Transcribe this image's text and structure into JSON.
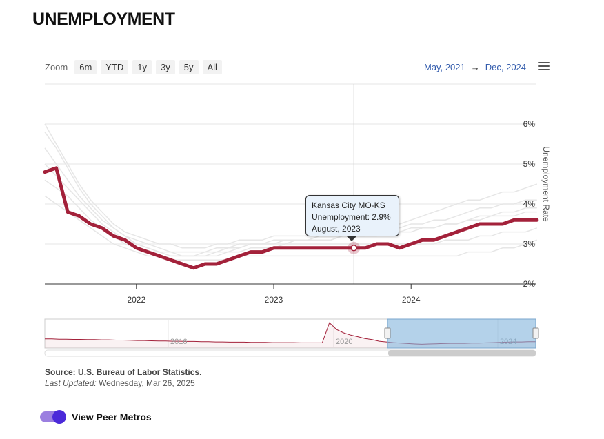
{
  "page": {
    "title": "UNEMPLOYMENT"
  },
  "zoom": {
    "label": "Zoom",
    "buttons": [
      "6m",
      "YTD",
      "1y",
      "3y",
      "5y",
      "All"
    ]
  },
  "range": {
    "from": "May, 2021",
    "arrow": "→",
    "to": "Dec, 2024"
  },
  "tooltip": {
    "line1": "Kansas City MO-KS",
    "line2": "Unemployment: 2.9%",
    "line3": "August, 2023"
  },
  "footer": {
    "source_label": "Source:",
    "source_text": "U.S. Bureau of Labor Statistics.",
    "updated_label": "Last Updated:",
    "updated_text": "Wednesday, Mar 26, 2025"
  },
  "toggle": {
    "label": "View Peer Metros",
    "on": true
  },
  "colors": {
    "main_series": "#a3213a",
    "peer_series": "#e6e6e6",
    "navigator_mask": "#a9cde9",
    "accent": "#4b2ad9"
  },
  "chart_data": {
    "type": "line",
    "ylabel": "Unemployment Rate",
    "ylim": [
      2,
      6.5
    ],
    "yticks": [
      2,
      3,
      4,
      5,
      6
    ],
    "ytick_labels": [
      "2%",
      "3%",
      "4%",
      "5%",
      "6%"
    ],
    "xticks": [
      "2022",
      "2023",
      "2024"
    ],
    "grid": true,
    "series": [
      {
        "name": "Kansas City MO-KS",
        "x": [
          "2021-05",
          "2021-06",
          "2021-07",
          "2021-08",
          "2021-09",
          "2021-10",
          "2021-11",
          "2021-12",
          "2022-01",
          "2022-02",
          "2022-03",
          "2022-04",
          "2022-05",
          "2022-06",
          "2022-07",
          "2022-08",
          "2022-09",
          "2022-10",
          "2022-11",
          "2022-12",
          "2023-01",
          "2023-02",
          "2023-03",
          "2023-04",
          "2023-05",
          "2023-06",
          "2023-07",
          "2023-08",
          "2023-09",
          "2023-10",
          "2023-11",
          "2023-12",
          "2024-01",
          "2024-02",
          "2024-03",
          "2024-04",
          "2024-05",
          "2024-06",
          "2024-07",
          "2024-08",
          "2024-09",
          "2024-10",
          "2024-11",
          "2024-12"
        ],
        "y": [
          4.8,
          4.9,
          3.8,
          3.7,
          3.5,
          3.4,
          3.2,
          3.1,
          2.9,
          2.8,
          2.7,
          2.6,
          2.5,
          2.4,
          2.5,
          2.5,
          2.6,
          2.7,
          2.8,
          2.8,
          2.9,
          2.9,
          2.9,
          2.9,
          2.9,
          2.9,
          2.9,
          2.9,
          2.9,
          3.0,
          3.0,
          2.9,
          3.0,
          3.1,
          3.1,
          3.2,
          3.3,
          3.4,
          3.5,
          3.5,
          3.5,
          3.6,
          3.6,
          3.6
        ]
      }
    ],
    "peer_series": [
      [
        6.0,
        5.5,
        5.0,
        4.5,
        4.1,
        3.8,
        3.5,
        3.3,
        3.2,
        3.1,
        3.0,
        3.0,
        2.9,
        2.9,
        2.9,
        3.0,
        3.0,
        3.1,
        3.1,
        3.1,
        3.2,
        3.2,
        3.2,
        3.2,
        3.3,
        3.3,
        3.3,
        3.4,
        3.4,
        3.4,
        3.5,
        3.5,
        3.6,
        3.7,
        3.8,
        3.9,
        4.0,
        4.1,
        4.1,
        4.2,
        4.3,
        4.3,
        4.4,
        4.5
      ],
      [
        5.4,
        5.0,
        4.6,
        4.2,
        3.9,
        3.6,
        3.4,
        3.2,
        3.1,
        3.0,
        2.9,
        2.8,
        2.8,
        2.8,
        2.8,
        2.9,
        2.9,
        3.0,
        3.0,
        3.0,
        3.1,
        3.1,
        3.1,
        3.1,
        3.2,
        3.2,
        3.2,
        3.3,
        3.3,
        3.3,
        3.4,
        3.4,
        3.5,
        3.5,
        3.6,
        3.6,
        3.7,
        3.8,
        3.9,
        3.9,
        4.0,
        4.0,
        4.1,
        4.1
      ],
      [
        5.8,
        5.4,
        4.9,
        4.4,
        4.0,
        3.7,
        3.4,
        3.2,
        3.0,
        2.9,
        2.8,
        2.7,
        2.7,
        2.7,
        2.7,
        2.8,
        2.8,
        2.9,
        3.0,
        3.0,
        3.0,
        3.0,
        3.1,
        3.1,
        3.1,
        3.1,
        3.2,
        3.2,
        3.2,
        3.2,
        3.3,
        3.3,
        3.3,
        3.4,
        3.4,
        3.5,
        3.5,
        3.6,
        3.7,
        3.7,
        3.8,
        3.8,
        3.9,
        3.9
      ],
      [
        5.0,
        4.7,
        4.4,
        4.1,
        3.8,
        3.5,
        3.3,
        3.1,
        3.0,
        2.9,
        2.8,
        2.8,
        2.7,
        2.7,
        2.8,
        2.8,
        2.9,
        2.9,
        3.0,
        3.0,
        3.0,
        3.1,
        3.1,
        3.1,
        3.1,
        3.1,
        3.2,
        3.2,
        3.2,
        3.3,
        3.3,
        3.3,
        3.4,
        3.4,
        3.4,
        3.5,
        3.5,
        3.6,
        3.6,
        3.7,
        3.7,
        3.7,
        3.8,
        3.8
      ],
      [
        4.6,
        4.4,
        4.2,
        3.9,
        3.6,
        3.4,
        3.2,
        3.0,
        2.9,
        2.8,
        2.8,
        2.7,
        2.7,
        2.7,
        2.7,
        2.7,
        2.8,
        2.8,
        2.9,
        2.9,
        2.9,
        3.0,
        3.0,
        3.0,
        3.0,
        3.0,
        3.0,
        3.0,
        3.0,
        3.0,
        3.0,
        3.0,
        3.0,
        3.0,
        3.0,
        3.1,
        3.1,
        3.1,
        3.2,
        3.2,
        3.3,
        3.3,
        3.3,
        3.4
      ],
      [
        4.2,
        4.0,
        3.8,
        3.6,
        3.4,
        3.2,
        3.0,
        2.9,
        2.8,
        2.7,
        2.7,
        2.6,
        2.6,
        2.6,
        2.6,
        2.6,
        2.6,
        2.7,
        2.7,
        2.7,
        2.7,
        2.7,
        2.7,
        2.7,
        2.7,
        2.7,
        2.7,
        2.7,
        2.7,
        2.7,
        2.7,
        2.7,
        2.7,
        2.7,
        2.7,
        2.7,
        2.7,
        2.8,
        2.8,
        2.8,
        2.9,
        2.9,
        3.0,
        3.1
      ]
    ],
    "highlight": {
      "x": "2023-08",
      "y": 2.9
    },
    "navigator": {
      "labels": [
        "2016",
        "2020",
        "2024"
      ],
      "values": [
        4.8,
        4.8,
        4.7,
        4.7,
        4.6,
        4.6,
        4.5,
        4.5,
        4.4,
        4.4,
        4.3,
        4.3,
        4.2,
        4.1,
        4.1,
        4.0,
        3.9,
        3.9,
        3.8,
        3.8,
        3.7,
        3.7,
        3.6,
        3.6,
        3.5,
        3.5,
        3.4,
        3.4,
        3.4,
        3.3,
        3.3,
        3.3,
        3.2,
        3.2,
        3.2,
        3.2,
        3.1,
        3.1,
        3.1,
        3.1,
        12.0,
        9.0,
        7.5,
        6.5,
        5.8,
        5.0,
        4.5,
        3.8,
        3.5,
        3.2,
        3.0,
        2.8,
        2.6,
        2.5,
        2.6,
        2.7,
        2.8,
        2.9,
        2.9,
        2.9,
        3.0,
        3.0,
        3.1,
        3.2,
        3.3,
        3.4,
        3.5,
        3.5,
        3.6,
        3.6
      ]
    }
  }
}
